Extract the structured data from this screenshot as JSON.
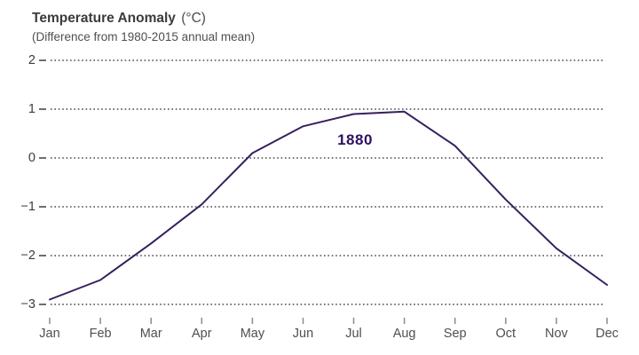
{
  "header": {
    "title": "Temperature Anomaly",
    "title_units": "(°C)",
    "subtitle": "(Difference from 1980-2015 annual mean)"
  },
  "chart_data": {
    "type": "line",
    "title": "Temperature Anomaly (°C)",
    "subtitle": "(Difference from 1980-2015 annual mean)",
    "categories": [
      "Jan",
      "Feb",
      "Mar",
      "Apr",
      "May",
      "Jun",
      "Jul",
      "Aug",
      "Sep",
      "Oct",
      "Nov",
      "Dec"
    ],
    "series": [
      {
        "name": "1880",
        "values": [
          -2.9,
          -2.5,
          -1.75,
          -0.95,
          0.1,
          0.65,
          0.9,
          0.95,
          0.25,
          -0.85,
          -1.85,
          -2.6
        ]
      }
    ],
    "yticks": [
      2,
      1,
      0,
      -1,
      -2,
      -3
    ],
    "ytick_labels": [
      "2",
      "1",
      "0",
      "−1",
      "−2",
      "−3"
    ],
    "ylim": [
      -3.2,
      2.2
    ],
    "xlabel": "",
    "ylabel": "Temperature Anomaly (°C)",
    "grid": "horizontal-dotted",
    "legend_position": "inline-label-near-july",
    "line_color": "#36205d",
    "label_color": "#2e1062",
    "grid_color": "#4a4a4a",
    "tick_color": "#8a8a8a"
  }
}
